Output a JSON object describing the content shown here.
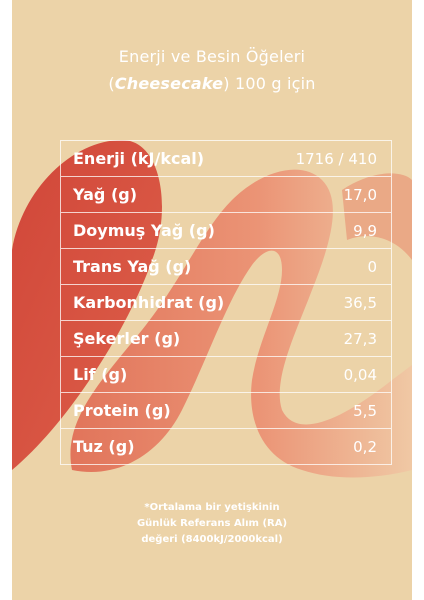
{
  "title": {
    "line1": "Enerji ve Besin Öğeleri",
    "product_open": "(",
    "product": "Cheesecake",
    "product_close": ")",
    "line2_rest": " 100 g için"
  },
  "rows": [
    {
      "label": "Enerji (kJ/kcal)",
      "value": "1716 / 410"
    },
    {
      "label": "Yağ (g)",
      "value": "17,0"
    },
    {
      "label": "Doymuş Yağ (g)",
      "value": "9,9"
    },
    {
      "label": "Trans Yağ (g)",
      "value": "0"
    },
    {
      "label": "Karbonhidrat (g)",
      "value": "36,5"
    },
    {
      "label": "Şekerler (g)",
      "value": "27,3"
    },
    {
      "label": "Lif (g)",
      "value": "0,04"
    },
    {
      "label": "Protein (g)",
      "value": "5,5"
    },
    {
      "label": "Tuz (g)",
      "value": "0,2"
    }
  ],
  "footnote": {
    "line1": "*Ortalama bir yetişkinin",
    "line2": "Günlük Referans Alım (RA)",
    "line3": "değeri (8400kJ/2000kcal)"
  },
  "colors": {
    "background": "#ecd3a8",
    "accent_red": "#d4483a",
    "accent_salmon": "#e9876a"
  }
}
